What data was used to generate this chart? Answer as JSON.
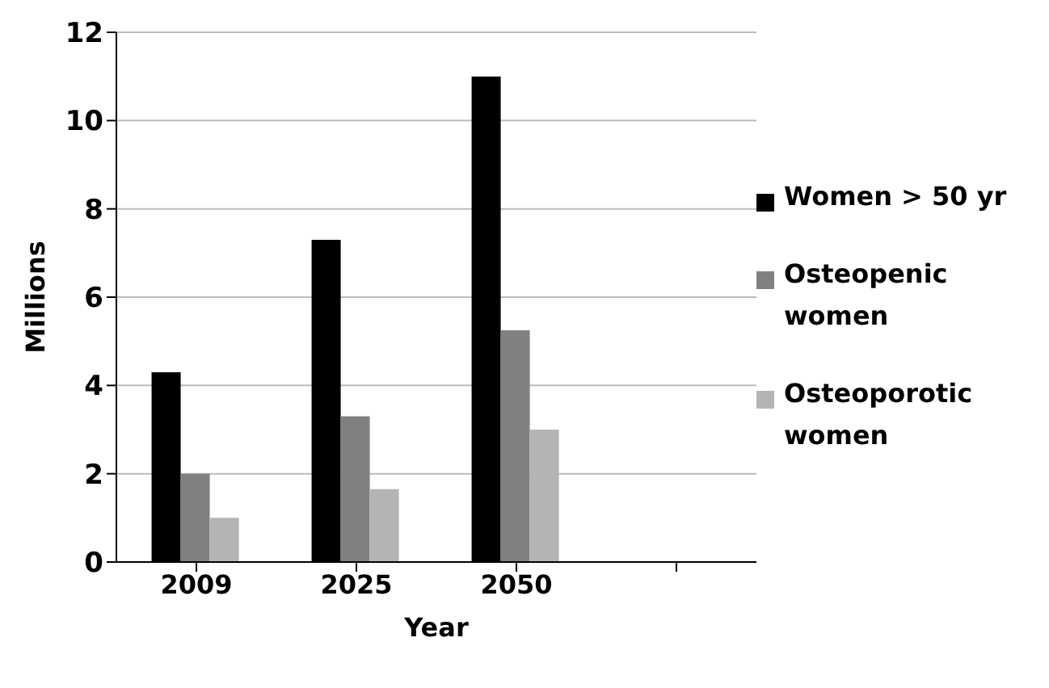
{
  "chart_data": {
    "type": "bar",
    "xlabel": "Year",
    "ylabel": "Millions",
    "categories": [
      "2009",
      "2025",
      "2050",
      null
    ],
    "series": [
      {
        "name": "Women > 50 yr",
        "color": "#000000",
        "values": [
          4.3,
          7.3,
          11.0,
          null
        ]
      },
      {
        "name": "Osteopenic women",
        "color": "#808080",
        "values": [
          2.0,
          3.3,
          5.25,
          null
        ]
      },
      {
        "name": "Osteoporotic women",
        "color": "#b4b4b4",
        "values": [
          1.0,
          1.65,
          3.0,
          null
        ]
      }
    ],
    "ylim": [
      0,
      12
    ],
    "yticks": [
      0,
      2,
      4,
      6,
      8,
      10,
      12
    ],
    "grid": "y",
    "legend": "right"
  }
}
